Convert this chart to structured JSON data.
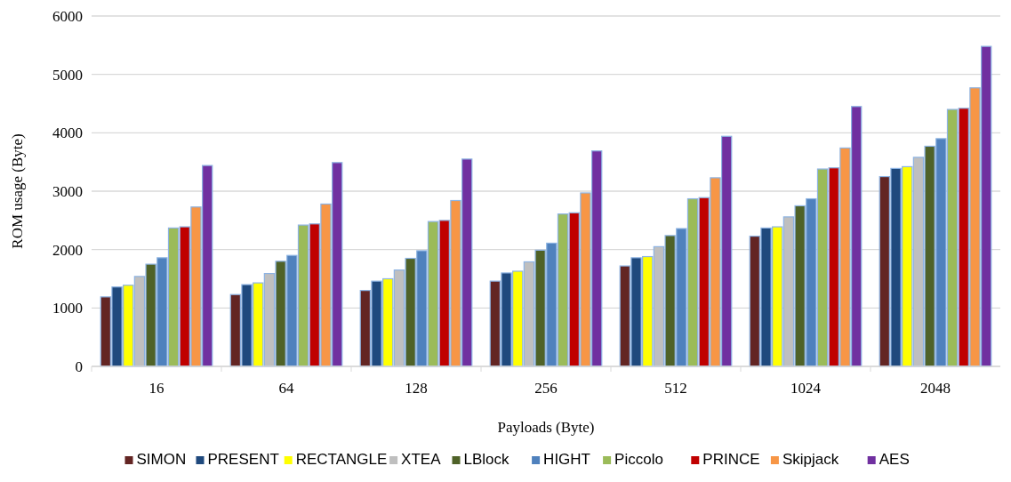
{
  "chart_data": {
    "type": "bar",
    "xlabel": "Payloads (Byte)",
    "ylabel": "ROM usage (Byte)",
    "categories": [
      "16",
      "64",
      "128",
      "256",
      "512",
      "1024",
      "2048"
    ],
    "series": [
      {
        "name": "SIMON",
        "color": "#632523",
        "values": [
          1190,
          1230,
          1300,
          1460,
          1720,
          2230,
          3250
        ]
      },
      {
        "name": "PRESENT",
        "color": "#1f497d",
        "values": [
          1360,
          1400,
          1460,
          1600,
          1860,
          2370,
          3390
        ]
      },
      {
        "name": "RECTANGLE",
        "color": "#ffff00",
        "values": [
          1390,
          1430,
          1500,
          1630,
          1880,
          2390,
          3420
        ]
      },
      {
        "name": "XTEA",
        "color": "#bfbfbf",
        "values": [
          1540,
          1590,
          1650,
          1790,
          2050,
          2560,
          3580
        ]
      },
      {
        "name": "LBlock",
        "color": "#4f6228",
        "values": [
          1750,
          1800,
          1850,
          1990,
          2240,
          2750,
          3770
        ]
      },
      {
        "name": "HIGHT",
        "color": "#4f81bd",
        "values": [
          1860,
          1900,
          1980,
          2110,
          2360,
          2870,
          3900
        ]
      },
      {
        "name": "Piccolo",
        "color": "#9bbb59",
        "values": [
          2370,
          2420,
          2480,
          2610,
          2870,
          3380,
          4400
        ]
      },
      {
        "name": "PRINCE",
        "color": "#c00000",
        "values": [
          2390,
          2440,
          2500,
          2630,
          2890,
          3400,
          4420
        ]
      },
      {
        "name": "Skipjack",
        "color": "#f79646",
        "values": [
          2730,
          2780,
          2840,
          2970,
          3230,
          3740,
          4770
        ]
      },
      {
        "name": "AES",
        "color": "#7030a0",
        "values": [
          3440,
          3490,
          3550,
          3690,
          3940,
          4450,
          5480
        ]
      }
    ],
    "ylim": [
      0,
      6000
    ],
    "yticks": [
      0,
      1000,
      2000,
      3000,
      4000,
      5000,
      6000
    ],
    "grid": "y",
    "legend": "bottom"
  }
}
